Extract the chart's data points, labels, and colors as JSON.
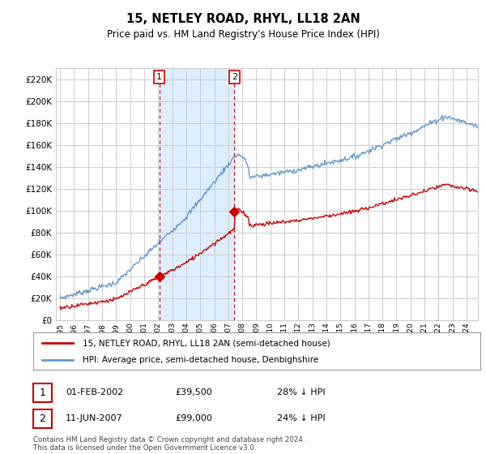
{
  "title": "15, NETLEY ROAD, RHYL, LL18 2AN",
  "subtitle": "Price paid vs. HM Land Registry's House Price Index (HPI)",
  "ylabel_ticks": [
    "£0",
    "£20K",
    "£40K",
    "£60K",
    "£80K",
    "£100K",
    "£120K",
    "£140K",
    "£160K",
    "£180K",
    "£200K",
    "£220K"
  ],
  "ytick_vals": [
    0,
    20000,
    40000,
    60000,
    80000,
    100000,
    120000,
    140000,
    160000,
    180000,
    200000,
    220000
  ],
  "ylim": [
    0,
    230000
  ],
  "xlim_start": 1994.7,
  "xlim_end": 2024.8,
  "transaction1_date": 2002.083,
  "transaction1_price": 39500,
  "transaction1_label": "1",
  "transaction2_date": 2007.44,
  "transaction2_price": 99000,
  "transaction2_label": "2",
  "legend_line1": "15, NETLEY ROAD, RHYL, LL18 2AN (semi-detached house)",
  "legend_line2": "HPI: Average price, semi-detached house, Denbighshire",
  "table_row1": [
    "1",
    "01-FEB-2002",
    "£39,500",
    "28% ↓ HPI"
  ],
  "table_row2": [
    "2",
    "11-JUN-2007",
    "£99,000",
    "24% ↓ HPI"
  ],
  "footnote": "Contains HM Land Registry data © Crown copyright and database right 2024.\nThis data is licensed under the Open Government Licence v3.0.",
  "line_property_color": "#cc0000",
  "line_hpi_color": "#6699cc",
  "shaded_color": "#ddeeff",
  "background_color": "#ffffff",
  "grid_color": "#cccccc",
  "spine_color": "#cccccc"
}
